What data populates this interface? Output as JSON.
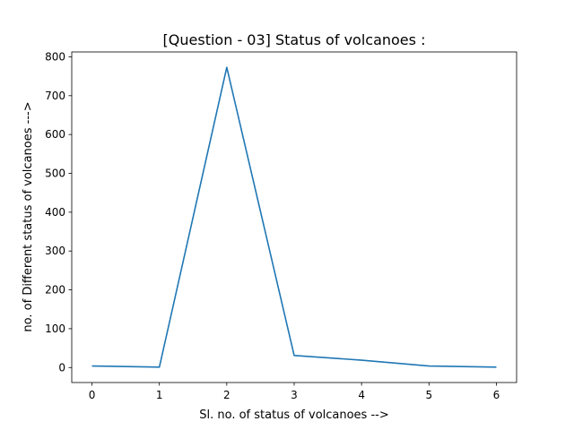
{
  "chart_data": {
    "type": "line",
    "title": "[Question - 03] Status of volcanoes :",
    "xlabel": "Sl. no. of status of volcanoes -->",
    "ylabel": "no. of Different status of volcanoes --->",
    "x": [
      0,
      1,
      2,
      3,
      4,
      5,
      6
    ],
    "series": [
      {
        "values": [
          4,
          1,
          773,
          31,
          19,
          4,
          1
        ]
      }
    ],
    "xlim": [
      -0.3,
      6.3
    ],
    "ylim": [
      -38.6,
      812.6
    ],
    "xticks": [
      0,
      1,
      2,
      3,
      4,
      5,
      6
    ],
    "yticks": [
      0,
      100,
      200,
      300,
      400,
      500,
      600,
      700,
      800
    ],
    "grid": false,
    "line_color": "#1f77b4"
  }
}
